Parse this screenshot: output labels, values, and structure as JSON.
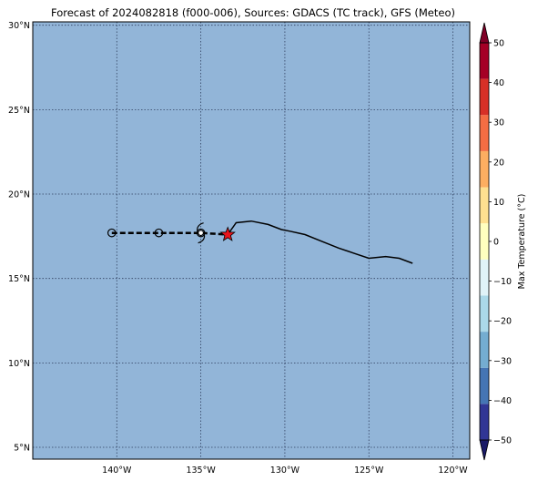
{
  "title": "Forecast of 2024082818 (f000-006), Sources: GDACS (TC track), GFS (Meteo)",
  "map": {
    "lon_range": [
      -145,
      -119
    ],
    "lat_range": [
      4.3,
      30.2
    ],
    "background_color": "#92b5d8",
    "grid": true,
    "x_ticks": [
      {
        "value": -140,
        "label": "140°W"
      },
      {
        "value": -135,
        "label": "135°W"
      },
      {
        "value": -130,
        "label": "130°W"
      },
      {
        "value": -125,
        "label": "125°W"
      },
      {
        "value": -120,
        "label": "120°W"
      }
    ],
    "y_ticks": [
      {
        "value": 5,
        "label": "5°N"
      },
      {
        "value": 10,
        "label": "10°N"
      },
      {
        "value": 15,
        "label": "15°N"
      },
      {
        "value": 20,
        "label": "20°N"
      },
      {
        "value": 25,
        "label": "25°N"
      },
      {
        "value": 30,
        "label": "30°N"
      }
    ]
  },
  "track": {
    "past_track": [
      [
        -133.4,
        17.6
      ],
      [
        -132.9,
        18.3
      ],
      [
        -132.0,
        18.4
      ],
      [
        -131.0,
        18.2
      ],
      [
        -130.2,
        17.9
      ],
      [
        -129.7,
        17.8
      ],
      [
        -128.8,
        17.6
      ],
      [
        -127.8,
        17.2
      ],
      [
        -126.8,
        16.8
      ],
      [
        -125.9,
        16.5
      ],
      [
        -125.0,
        16.2
      ],
      [
        -124.0,
        16.3
      ],
      [
        -123.2,
        16.2
      ],
      [
        -122.4,
        15.9
      ]
    ],
    "forecast_track": [
      [
        -140.3,
        17.7
      ],
      [
        -137.5,
        17.7
      ],
      [
        -135.0,
        17.7
      ],
      [
        -133.4,
        17.6
      ]
    ],
    "forecast_points": [
      [
        -140.3,
        17.7
      ],
      [
        -137.5,
        17.7
      ],
      [
        -135.0,
        17.7
      ]
    ],
    "cyclone_symbol_position": [
      -135.0,
      17.7
    ],
    "current_position": [
      -133.4,
      17.6
    ],
    "current_marker_color": "#e8141c"
  },
  "colorbar": {
    "label": "Max Temperature (°C)",
    "min": -55,
    "max": 55,
    "ticks": [
      -50,
      -40,
      -30,
      -20,
      -10,
      0,
      10,
      20,
      30,
      40,
      50
    ],
    "tick_labels": [
      "−50",
      "−40",
      "−30",
      "−20",
      "−10",
      "0",
      "10",
      "20",
      "30",
      "40",
      "50"
    ],
    "colors": [
      "#313695",
      "#4575b4",
      "#74add1",
      "#abd9e9",
      "#e0f3f8",
      "#ffffbf",
      "#fee090",
      "#fdae61",
      "#f46d43",
      "#d73027",
      "#a50026"
    ],
    "under_color": "#1a1a66",
    "over_color": "#7f0026"
  }
}
